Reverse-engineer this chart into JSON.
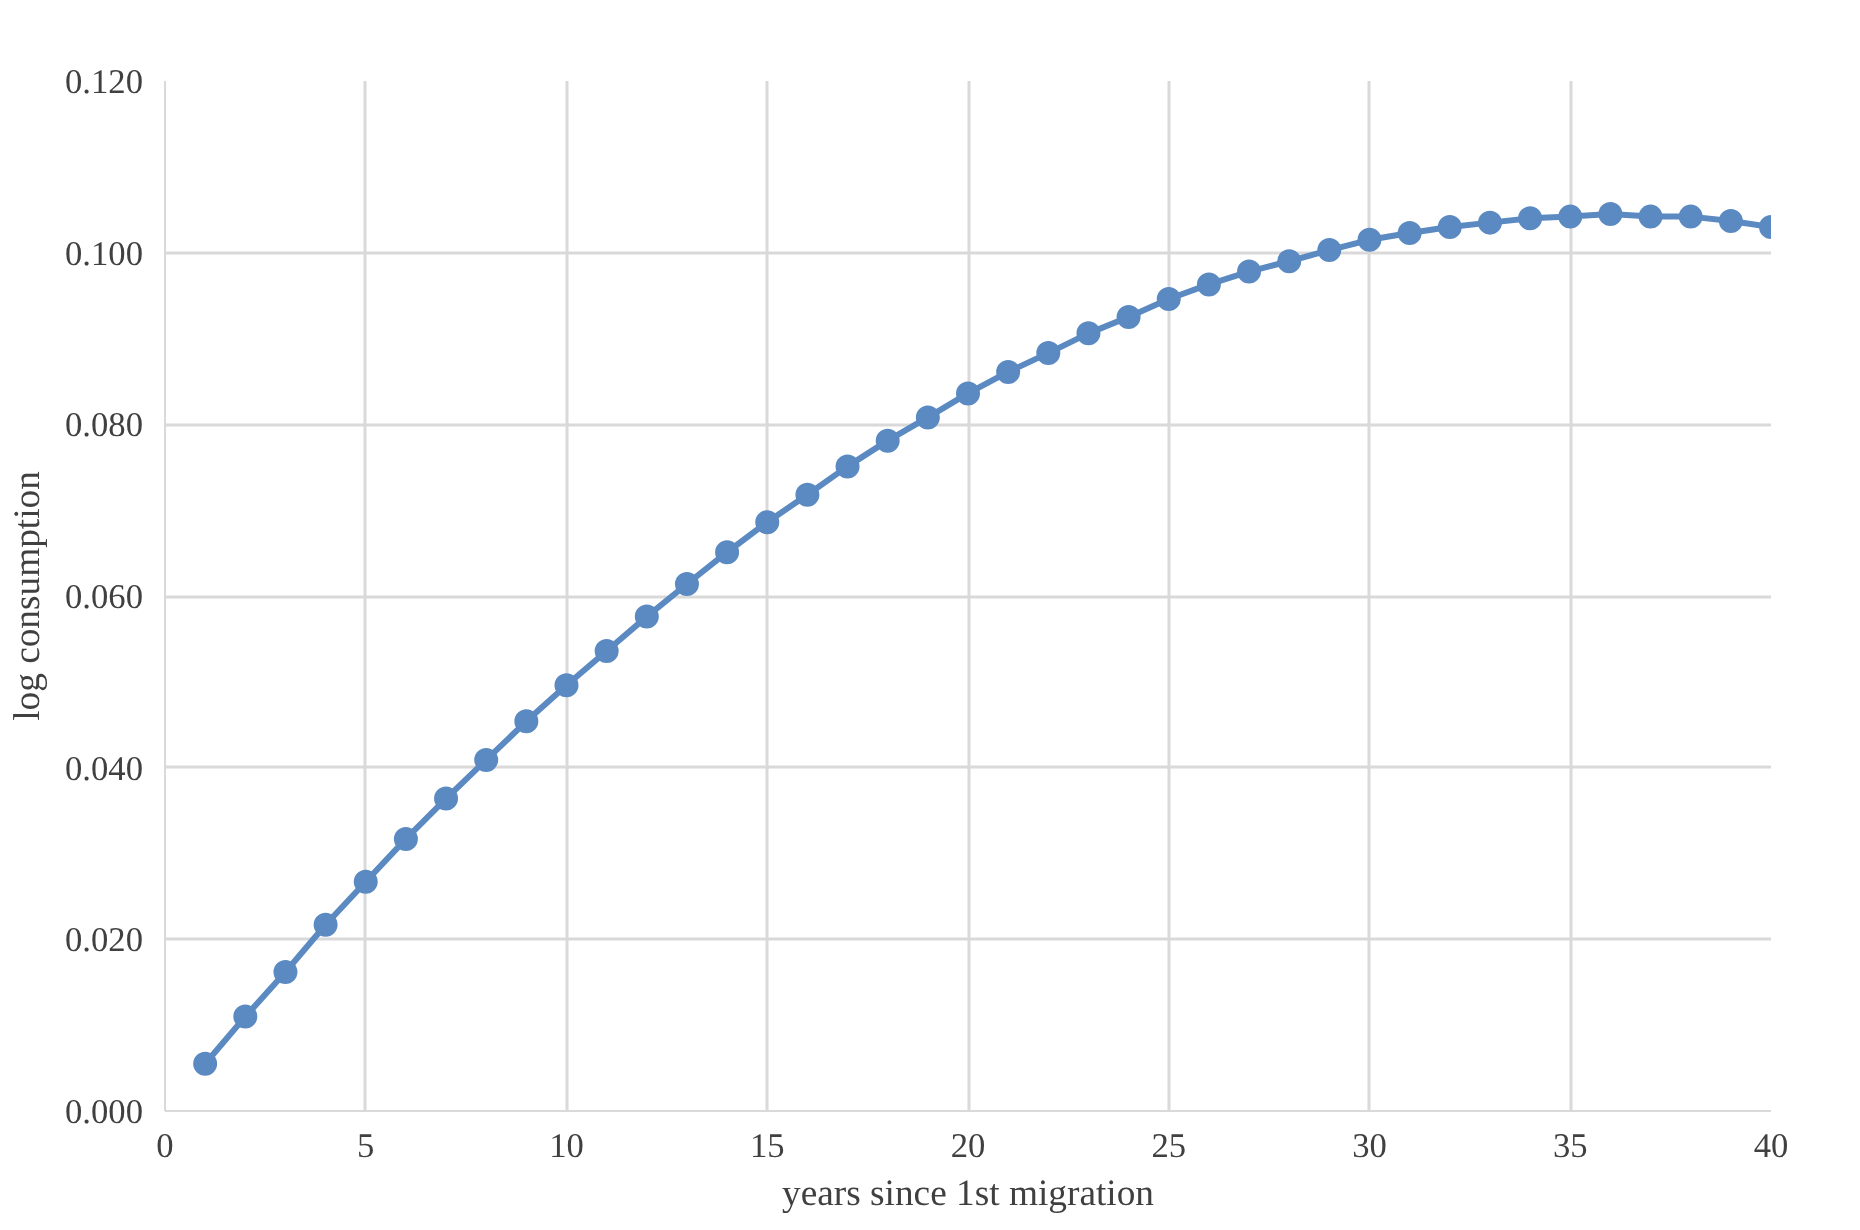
{
  "chart_data": {
    "type": "line",
    "xlabel": "years since 1st migration",
    "ylabel": "log consumption",
    "x": [
      1,
      2,
      3,
      4,
      5,
      6,
      7,
      8,
      9,
      10,
      11,
      12,
      13,
      14,
      15,
      16,
      17,
      18,
      19,
      20,
      21,
      22,
      23,
      24,
      25,
      26,
      27,
      28,
      29,
      30,
      31,
      32,
      33,
      34,
      35,
      36,
      37,
      38,
      39,
      40
    ],
    "series": [
      {
        "color": "#5b8ac2",
        "values": [
          0.0055,
          0.011,
          0.0162,
          0.0217,
          0.0267,
          0.0317,
          0.0364,
          0.0409,
          0.0454,
          0.0496,
          0.0536,
          0.0576,
          0.0614,
          0.0651,
          0.0686,
          0.0718,
          0.0751,
          0.0781,
          0.0808,
          0.0836,
          0.0861,
          0.0883,
          0.0906,
          0.0925,
          0.0946,
          0.0963,
          0.0978,
          0.099,
          0.1003,
          0.1015,
          0.1023,
          0.103,
          0.1035,
          0.104,
          0.1042,
          0.1045,
          0.1042,
          0.1042,
          0.1037,
          0.103
        ]
      }
    ],
    "xlim": [
      0,
      40
    ],
    "xticks": [
      0,
      5,
      10,
      15,
      20,
      25,
      30,
      35,
      40
    ],
    "ylim": [
      0,
      0.12
    ],
    "yticks": [
      {
        "value": 0,
        "label": "0.000"
      },
      {
        "value": 0.02,
        "label": "0.020"
      },
      {
        "value": 0.04,
        "label": "0.040"
      },
      {
        "value": 0.06,
        "label": "0.060"
      },
      {
        "value": 0.08,
        "label": "0.080"
      },
      {
        "value": 0.1,
        "label": "0.100"
      },
      {
        "value": 0.12,
        "label": "0.120"
      }
    ],
    "grid": true,
    "marker": "circle",
    "line_style": "solid"
  }
}
